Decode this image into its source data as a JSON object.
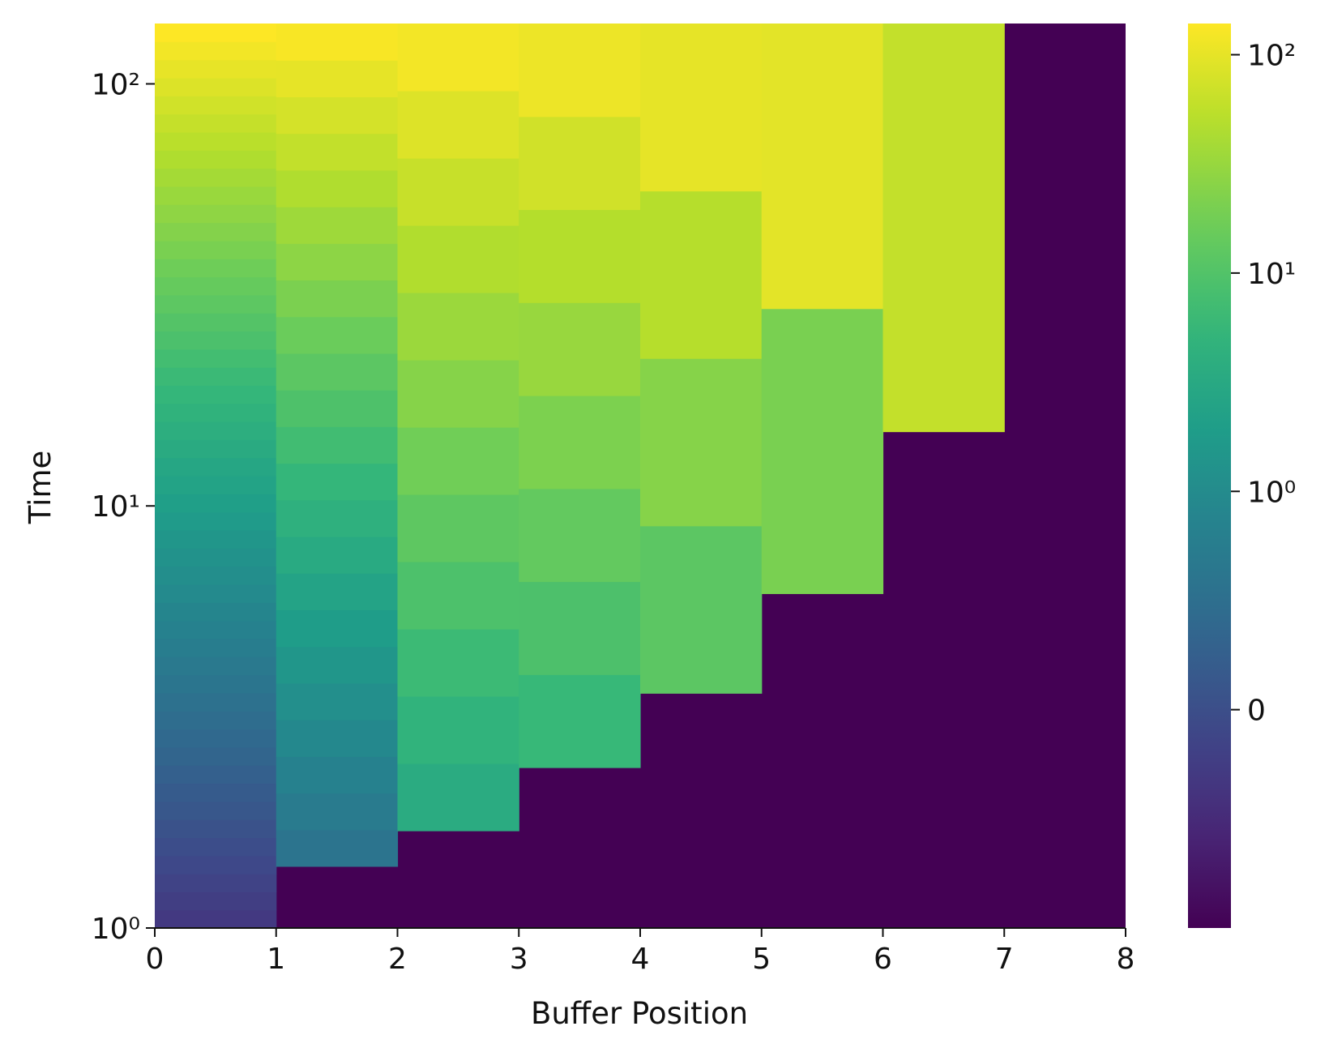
{
  "chart_data": {
    "type": "heatmap",
    "title": "",
    "xlabel": "Buffer Position",
    "ylabel": "Time",
    "x_scale": "linear",
    "y_scale": "log",
    "x_lim": [
      0,
      8
    ],
    "y_lim": [
      1,
      139
    ],
    "x_ticks": [
      "0",
      "1",
      "2",
      "3",
      "4",
      "5",
      "6",
      "7",
      "8"
    ],
    "y_ticks": [
      {
        "value": 1,
        "label": "10⁰"
      },
      {
        "value": 10,
        "label": "10¹"
      },
      {
        "value": 100,
        "label": "10²"
      }
    ],
    "colormap": "viridis",
    "colorbar": {
      "scale": "symlog",
      "range": [
        -1,
        139
      ],
      "ticks": [
        {
          "value": 0,
          "label": "0"
        },
        {
          "value": 1,
          "label": "10⁰"
        },
        {
          "value": 10,
          "label": "10¹"
        },
        {
          "value": 100,
          "label": "10²"
        }
      ]
    },
    "empty_color": "#440154",
    "columns": [
      {
        "x": 0,
        "from_time": 1,
        "to_time": 139,
        "value_at_start": -0.3,
        "value_at_end": 139,
        "bands": 50
      },
      {
        "x": 1,
        "from_time": 1.4,
        "to_time": 139,
        "value_at_start": 0.6,
        "value_at_end": 130,
        "bands": 23
      },
      {
        "x": 2,
        "from_time": 1.7,
        "to_time": 139,
        "value_at_start": 3.5,
        "value_at_end": 120,
        "bands": 12
      },
      {
        "x": 3,
        "from_time": 2.4,
        "to_time": 139,
        "value_at_start": 6,
        "value_at_end": 110,
        "bands": 8
      },
      {
        "x": 4,
        "from_time": 3.6,
        "to_time": 139,
        "value_at_start": 12,
        "value_at_end": 100,
        "bands": 4
      },
      {
        "x": 5,
        "from_time": 6.2,
        "to_time": 139,
        "value_at_start": 20,
        "value_at_end": 95,
        "bands": 2
      },
      {
        "x": 6,
        "from_time": 15,
        "to_time": 139,
        "value_at_start": 60,
        "value_at_end": 60,
        "bands": 1
      },
      {
        "x": 7,
        "from_time": null,
        "to_time": null,
        "value_at_start": null,
        "value_at_end": null,
        "bands": 0
      }
    ]
  }
}
